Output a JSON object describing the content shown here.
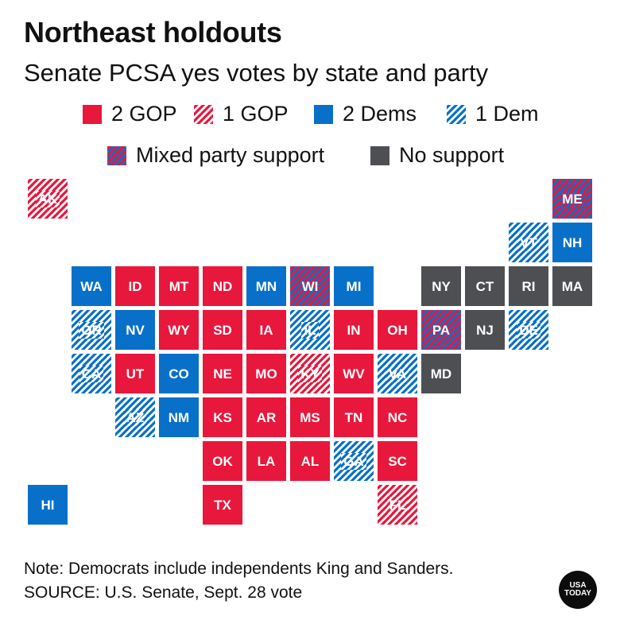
{
  "title": "Northeast holdouts",
  "subtitle": "Senate PCSA yes votes by state and party",
  "colors": {
    "gop": "#e8173c",
    "dem": "#0870c8",
    "none": "#4d4f53",
    "white": "#ffffff"
  },
  "legend": [
    {
      "key": "2gop",
      "label": "2 GOP",
      "style": "solid-red"
    },
    {
      "key": "1gop",
      "label": "1 GOP",
      "style": "stripe-red"
    },
    {
      "key": "2dem",
      "label": "2 Dems",
      "style": "solid-blue"
    },
    {
      "key": "1dem",
      "label": "1 Dem",
      "style": "stripe-blue"
    },
    {
      "key": "mixed",
      "label": "Mixed party support",
      "style": "mixed"
    },
    {
      "key": "none",
      "label": "No support",
      "style": "none"
    }
  ],
  "states": [
    {
      "abbr": "AK",
      "support": "1gop"
    },
    {
      "abbr": "ME",
      "support": "mixed"
    },
    {
      "abbr": "VT",
      "support": "1dem"
    },
    {
      "abbr": "NH",
      "support": "2dem"
    },
    {
      "abbr": "WA",
      "support": "2dem"
    },
    {
      "abbr": "ID",
      "support": "2gop"
    },
    {
      "abbr": "MT",
      "support": "2gop"
    },
    {
      "abbr": "ND",
      "support": "2gop"
    },
    {
      "abbr": "MN",
      "support": "2dem"
    },
    {
      "abbr": "WI",
      "support": "mixed"
    },
    {
      "abbr": "MI",
      "support": "2dem"
    },
    {
      "abbr": "NY",
      "support": "none"
    },
    {
      "abbr": "CT",
      "support": "none"
    },
    {
      "abbr": "RI",
      "support": "none"
    },
    {
      "abbr": "MA",
      "support": "none"
    },
    {
      "abbr": "OR",
      "support": "1dem"
    },
    {
      "abbr": "NV",
      "support": "2dem"
    },
    {
      "abbr": "WY",
      "support": "2gop"
    },
    {
      "abbr": "SD",
      "support": "2gop"
    },
    {
      "abbr": "IA",
      "support": "2gop"
    },
    {
      "abbr": "IL",
      "support": "1dem"
    },
    {
      "abbr": "IN",
      "support": "2gop"
    },
    {
      "abbr": "OH",
      "support": "2gop"
    },
    {
      "abbr": "PA",
      "support": "mixed"
    },
    {
      "abbr": "NJ",
      "support": "none"
    },
    {
      "abbr": "DE",
      "support": "1dem"
    },
    {
      "abbr": "CA",
      "support": "1dem"
    },
    {
      "abbr": "UT",
      "support": "2gop"
    },
    {
      "abbr": "CO",
      "support": "2dem"
    },
    {
      "abbr": "NE",
      "support": "2gop"
    },
    {
      "abbr": "MO",
      "support": "2gop"
    },
    {
      "abbr": "KY",
      "support": "1gop"
    },
    {
      "abbr": "WV",
      "support": "2gop"
    },
    {
      "abbr": "VA",
      "support": "1dem"
    },
    {
      "abbr": "MD",
      "support": "none"
    },
    {
      "abbr": "AZ",
      "support": "1dem"
    },
    {
      "abbr": "NM",
      "support": "2dem"
    },
    {
      "abbr": "KS",
      "support": "2gop"
    },
    {
      "abbr": "AR",
      "support": "2gop"
    },
    {
      "abbr": "MS",
      "support": "2gop"
    },
    {
      "abbr": "TN",
      "support": "2gop"
    },
    {
      "abbr": "NC",
      "support": "2gop"
    },
    {
      "abbr": "OK",
      "support": "2gop"
    },
    {
      "abbr": "LA",
      "support": "2gop"
    },
    {
      "abbr": "AL",
      "support": "2gop"
    },
    {
      "abbr": "GA",
      "support": "1dem"
    },
    {
      "abbr": "SC",
      "support": "2gop"
    },
    {
      "abbr": "HI",
      "support": "2dem"
    },
    {
      "abbr": "TX",
      "support": "2gop"
    },
    {
      "abbr": "FL",
      "support": "1gop"
    }
  ],
  "note": "Note: Democrats include independents King and Sanders.",
  "source": "SOURCE: U.S. Senate, Sept. 28 vote",
  "logo": {
    "line1": "USA",
    "line2": "TODAY"
  }
}
